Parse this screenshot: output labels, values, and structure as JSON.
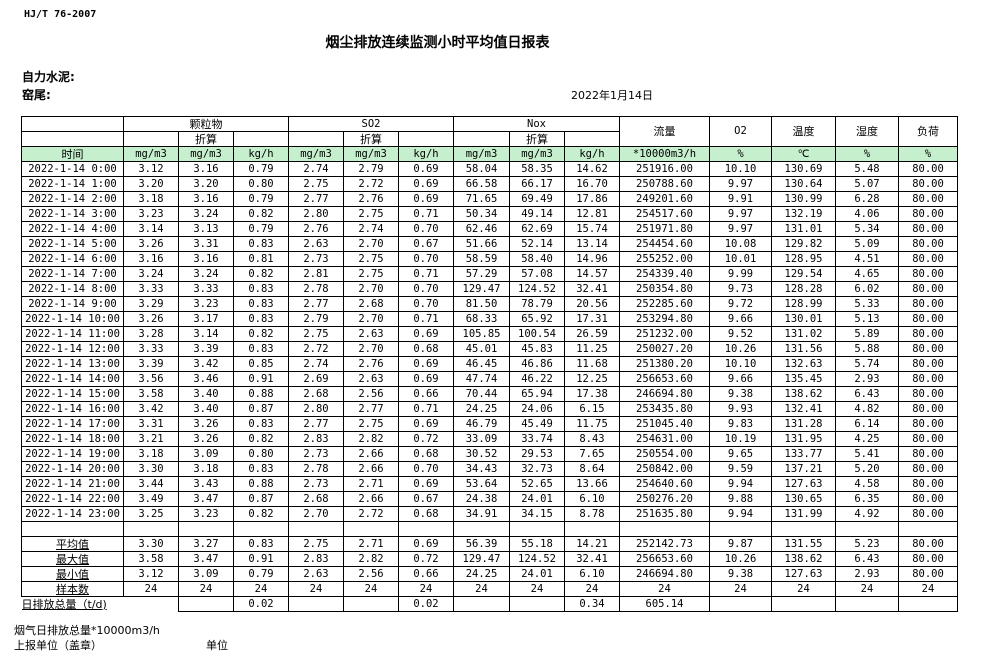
{
  "header": {
    "standard": "HJ/T  76-2007",
    "title": "烟尘排放连续监测小时平均值日报表",
    "company": "自力水泥:",
    "kiln": "窑尾:",
    "date": "2022年1月14日"
  },
  "table": {
    "groups": {
      "particulate": "颗粒物",
      "so2": "SO2",
      "nox": "Nox",
      "flow": "流量",
      "o2": "O2",
      "temp": "温度",
      "humidity": "湿度",
      "load": "负荷"
    },
    "converted": "折算",
    "units": [
      "时间",
      "mg/m3",
      "mg/m3",
      "kg/h",
      "mg/m3",
      "mg/m3",
      "kg/h",
      "mg/m3",
      "mg/m3",
      "kg/h",
      "*10000m3/h",
      "%",
      "℃",
      "%",
      "%"
    ],
    "rows": [
      [
        "2022-1-14 0:00",
        "3.12",
        "3.16",
        "0.79",
        "2.74",
        "2.79",
        "0.69",
        "58.04",
        "58.35",
        "14.62",
        "251916.00",
        "10.10",
        "130.69",
        "5.48",
        "80.00"
      ],
      [
        "2022-1-14 1:00",
        "3.20",
        "3.20",
        "0.80",
        "2.75",
        "2.72",
        "0.69",
        "66.58",
        "66.17",
        "16.70",
        "250788.60",
        "9.97",
        "130.64",
        "5.07",
        "80.00"
      ],
      [
        "2022-1-14 2:00",
        "3.18",
        "3.16",
        "0.79",
        "2.77",
        "2.76",
        "0.69",
        "71.65",
        "69.49",
        "17.86",
        "249201.60",
        "9.91",
        "130.99",
        "6.28",
        "80.00"
      ],
      [
        "2022-1-14 3:00",
        "3.23",
        "3.24",
        "0.82",
        "2.80",
        "2.75",
        "0.71",
        "50.34",
        "49.14",
        "12.81",
        "254517.60",
        "9.97",
        "132.19",
        "4.06",
        "80.00"
      ],
      [
        "2022-1-14 4:00",
        "3.14",
        "3.13",
        "0.79",
        "2.76",
        "2.74",
        "0.70",
        "62.46",
        "62.69",
        "15.74",
        "251971.80",
        "9.97",
        "131.01",
        "5.34",
        "80.00"
      ],
      [
        "2022-1-14 5:00",
        "3.26",
        "3.31",
        "0.83",
        "2.63",
        "2.70",
        "0.67",
        "51.66",
        "52.14",
        "13.14",
        "254454.60",
        "10.08",
        "129.82",
        "5.09",
        "80.00"
      ],
      [
        "2022-1-14 6:00",
        "3.16",
        "3.16",
        "0.81",
        "2.73",
        "2.75",
        "0.70",
        "58.59",
        "58.40",
        "14.96",
        "255252.00",
        "10.01",
        "128.95",
        "4.51",
        "80.00"
      ],
      [
        "2022-1-14 7:00",
        "3.24",
        "3.24",
        "0.82",
        "2.81",
        "2.75",
        "0.71",
        "57.29",
        "57.08",
        "14.57",
        "254339.40",
        "9.99",
        "129.54",
        "4.65",
        "80.00"
      ],
      [
        "2022-1-14 8:00",
        "3.33",
        "3.33",
        "0.83",
        "2.78",
        "2.70",
        "0.70",
        "129.47",
        "124.52",
        "32.41",
        "250354.80",
        "9.73",
        "128.28",
        "6.02",
        "80.00"
      ],
      [
        "2022-1-14 9:00",
        "3.29",
        "3.23",
        "0.83",
        "2.77",
        "2.68",
        "0.70",
        "81.50",
        "78.79",
        "20.56",
        "252285.60",
        "9.72",
        "128.99",
        "5.33",
        "80.00"
      ],
      [
        "2022-1-14 10:00",
        "3.26",
        "3.17",
        "0.83",
        "2.79",
        "2.70",
        "0.71",
        "68.33",
        "65.92",
        "17.31",
        "253294.80",
        "9.66",
        "130.01",
        "5.13",
        "80.00"
      ],
      [
        "2022-1-14 11:00",
        "3.28",
        "3.14",
        "0.82",
        "2.75",
        "2.63",
        "0.69",
        "105.85",
        "100.54",
        "26.59",
        "251232.00",
        "9.52",
        "131.02",
        "5.89",
        "80.00"
      ],
      [
        "2022-1-14 12:00",
        "3.33",
        "3.39",
        "0.83",
        "2.72",
        "2.70",
        "0.68",
        "45.01",
        "45.83",
        "11.25",
        "250027.20",
        "10.26",
        "131.56",
        "5.88",
        "80.00"
      ],
      [
        "2022-1-14 13:00",
        "3.39",
        "3.42",
        "0.85",
        "2.74",
        "2.76",
        "0.69",
        "46.45",
        "46.86",
        "11.68",
        "251380.20",
        "10.10",
        "132.63",
        "5.74",
        "80.00"
      ],
      [
        "2022-1-14 14:00",
        "3.56",
        "3.46",
        "0.91",
        "2.69",
        "2.63",
        "0.69",
        "47.74",
        "46.22",
        "12.25",
        "256653.60",
        "9.66",
        "135.45",
        "2.93",
        "80.00"
      ],
      [
        "2022-1-14 15:00",
        "3.58",
        "3.40",
        "0.88",
        "2.68",
        "2.56",
        "0.66",
        "70.44",
        "65.94",
        "17.38",
        "246694.80",
        "9.38",
        "138.62",
        "6.43",
        "80.00"
      ],
      [
        "2022-1-14 16:00",
        "3.42",
        "3.40",
        "0.87",
        "2.80",
        "2.77",
        "0.71",
        "24.25",
        "24.06",
        "6.15",
        "253435.80",
        "9.93",
        "132.41",
        "4.82",
        "80.00"
      ],
      [
        "2022-1-14 17:00",
        "3.31",
        "3.26",
        "0.83",
        "2.77",
        "2.75",
        "0.69",
        "46.79",
        "45.49",
        "11.75",
        "251045.40",
        "9.83",
        "131.28",
        "6.14",
        "80.00"
      ],
      [
        "2022-1-14 18:00",
        "3.21",
        "3.26",
        "0.82",
        "2.83",
        "2.82",
        "0.72",
        "33.09",
        "33.74",
        "8.43",
        "254631.00",
        "10.19",
        "131.95",
        "4.25",
        "80.00"
      ],
      [
        "2022-1-14 19:00",
        "3.18",
        "3.09",
        "0.80",
        "2.73",
        "2.66",
        "0.68",
        "30.52",
        "29.53",
        "7.65",
        "250554.00",
        "9.65",
        "133.77",
        "5.41",
        "80.00"
      ],
      [
        "2022-1-14 20:00",
        "3.30",
        "3.18",
        "0.83",
        "2.78",
        "2.66",
        "0.70",
        "34.43",
        "32.73",
        "8.64",
        "250842.00",
        "9.59",
        "137.21",
        "5.20",
        "80.00"
      ],
      [
        "2022-1-14 21:00",
        "3.44",
        "3.43",
        "0.88",
        "2.73",
        "2.71",
        "0.69",
        "53.64",
        "52.65",
        "13.66",
        "254640.60",
        "9.94",
        "127.63",
        "4.58",
        "80.00"
      ],
      [
        "2022-1-14 22:00",
        "3.49",
        "3.47",
        "0.87",
        "2.68",
        "2.66",
        "0.67",
        "24.38",
        "24.01",
        "6.10",
        "250276.20",
        "9.88",
        "130.65",
        "6.35",
        "80.00"
      ],
      [
        "2022-1-14 23:00",
        "3.25",
        "3.23",
        "0.82",
        "2.70",
        "2.72",
        "0.68",
        "34.91",
        "34.15",
        "8.78",
        "251635.80",
        "9.94",
        "131.99",
        "4.92",
        "80.00"
      ]
    ],
    "summary": [
      [
        "平均值",
        "3.30",
        "3.27",
        "0.83",
        "2.75",
        "2.71",
        "0.69",
        "56.39",
        "55.18",
        "14.21",
        "252142.73",
        "9.87",
        "131.55",
        "5.23",
        "80.00"
      ],
      [
        "最大值",
        "3.58",
        "3.47",
        "0.91",
        "2.83",
        "2.82",
        "0.72",
        "129.47",
        "124.52",
        "32.41",
        "256653.60",
        "10.26",
        "138.62",
        "6.43",
        "80.00"
      ],
      [
        "最小值",
        "3.12",
        "3.09",
        "0.79",
        "2.63",
        "2.56",
        "0.66",
        "24.25",
        "24.01",
        "6.10",
        "246694.80",
        "9.38",
        "127.63",
        "2.93",
        "80.00"
      ],
      [
        "样本数",
        "24",
        "24",
        "24",
        "24",
        "24",
        "24",
        "24",
        "24",
        "24",
        "24",
        "24",
        "24",
        "24",
        "24"
      ]
    ],
    "daily_total": {
      "label": "日排放总量（t/d)",
      "particulate": "0.02",
      "so2": "0.02",
      "nox": "0.34",
      "flow": "605.14"
    }
  },
  "footer": {
    "flue_gas_total": "烟气日排放总量*10000m3/h",
    "reporting_unit": "上报单位（盖章）",
    "unit": "单位"
  }
}
